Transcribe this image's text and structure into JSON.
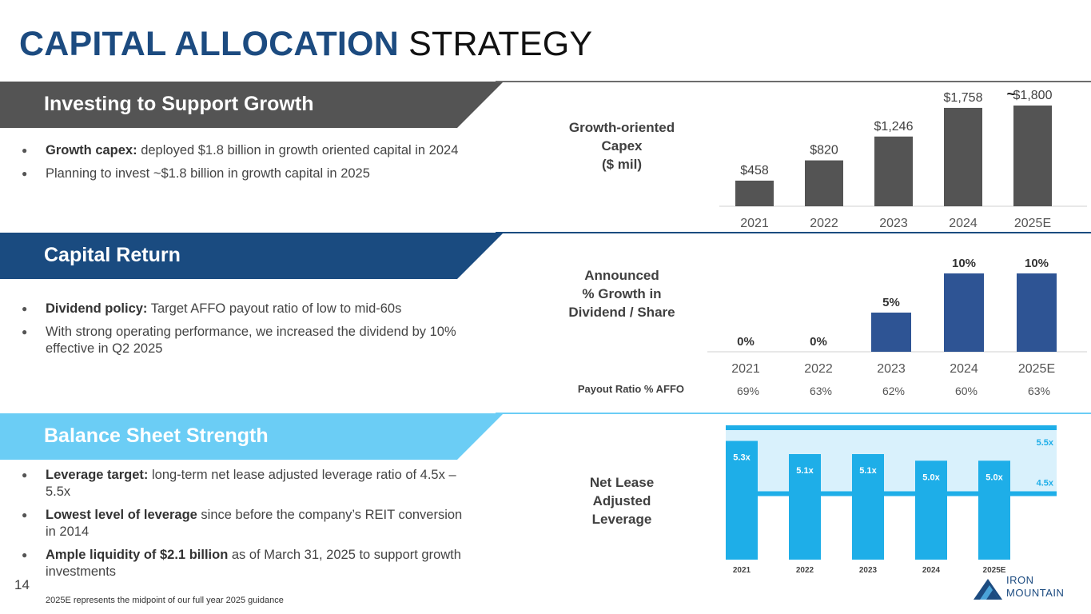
{
  "title": {
    "bold": "CAPITAL ALLOCATION",
    "light": "STRATEGY"
  },
  "colors": {
    "title_blue": "#1c4b80",
    "band_gray": "#545454",
    "band_navy": "#1a4b80",
    "band_light": "#6bcdf5",
    "bar_gray": "#545454",
    "bar_navy": "#2e5494",
    "bar_cyan": "#1eaee8",
    "range_fill": "#d9f1fc"
  },
  "sections": {
    "growth": {
      "heading": "Investing to Support Growth",
      "bullets": [
        {
          "bold": "Growth capex:",
          "text": " deployed $1.8 billion in growth oriented capital in 2024"
        },
        {
          "bold": "",
          "text": "Planning to invest ~$1.8 billion in growth capital in 2025"
        }
      ]
    },
    "capital_return": {
      "heading": "Capital Return",
      "bullets": [
        {
          "bold": "Dividend policy:",
          "text": " Target AFFO payout ratio of low to mid-60s"
        },
        {
          "bold": "",
          "text": "With strong operating performance, we increased the dividend by 10% effective in Q2 2025"
        }
      ]
    },
    "balance_sheet": {
      "heading": "Balance Sheet Strength",
      "bullets": [
        {
          "bold": "Leverage target:",
          "text": " long-term net lease adjusted leverage ratio of 4.5x – 5.5x"
        },
        {
          "bold": "Lowest level of leverage",
          "text": " since before the company’s REIT conversion in 2014"
        },
        {
          "bold": "Ample liquidity of $2.1 billion",
          "text": " as of March 31, 2025 to support growth investments"
        }
      ]
    }
  },
  "chart_data": [
    {
      "type": "bar",
      "title": "Growth-oriented\nCapex\n($ mil)",
      "categories": [
        "2021",
        "2022",
        "2023",
        "2024",
        "2025E"
      ],
      "values": [
        458,
        820,
        1246,
        1758,
        1800
      ],
      "data_labels": [
        "$458",
        "$820",
        "$1,246",
        "$1,758",
        "$1,800"
      ],
      "approx_prefix": "~",
      "ylim": [
        0,
        2000
      ]
    },
    {
      "type": "bar",
      "title": "Announced\n% Growth in\nDividend / Share",
      "categories": [
        "2021",
        "2022",
        "2023",
        "2024",
        "2025E"
      ],
      "values": [
        0,
        0,
        5,
        10,
        10
      ],
      "data_labels": [
        "0%",
        "0%",
        "5%",
        "10%",
        "10%"
      ],
      "ylim": [
        0,
        10
      ],
      "payout_ratio": {
        "label": "Payout Ratio % AFFO",
        "values": [
          "69%",
          "63%",
          "62%",
          "60%",
          "63%"
        ]
      }
    },
    {
      "type": "bar",
      "title": "Net Lease\nAdjusted\nLeverage",
      "categories": [
        "2021",
        "2022",
        "2023",
        "2024",
        "2025E"
      ],
      "values": [
        5.3,
        5.1,
        5.1,
        5.0,
        5.0
      ],
      "data_labels": [
        "5.3x",
        "5.1x",
        "5.1x",
        "5.0x",
        "5.0x"
      ],
      "target_range": {
        "low": 4.5,
        "high": 5.5,
        "low_label": "4.5x",
        "high_label": "5.5x"
      },
      "ylim": [
        3.5,
        5.5
      ]
    }
  ],
  "page_number": "14",
  "footnote": "2025E represents the midpoint of our full year 2025 guidance",
  "logo": {
    "line1": "IRON",
    "line2": "MOUNTAIN"
  }
}
